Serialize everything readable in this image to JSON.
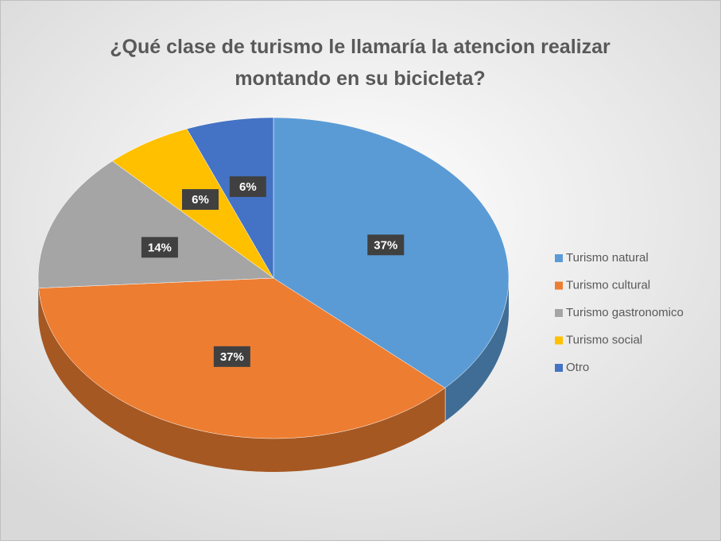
{
  "chart_data": {
    "type": "pie",
    "title": "¿Qué clase de turismo le llamaría la atencion realizar montando en su bicicleta?",
    "categories": [
      "Turismo natural",
      "Turismo cultural",
      "Turismo gastronomico",
      "Turismo social",
      "Otro"
    ],
    "values": [
      37,
      37,
      14,
      6,
      6
    ],
    "value_labels": [
      "37%",
      "37%",
      "14%",
      "6%",
      "6%"
    ],
    "colors": [
      "#5b9bd5",
      "#ed7d31",
      "#a5a5a5",
      "#ffc000",
      "#4472c4"
    ],
    "legend": "right"
  }
}
